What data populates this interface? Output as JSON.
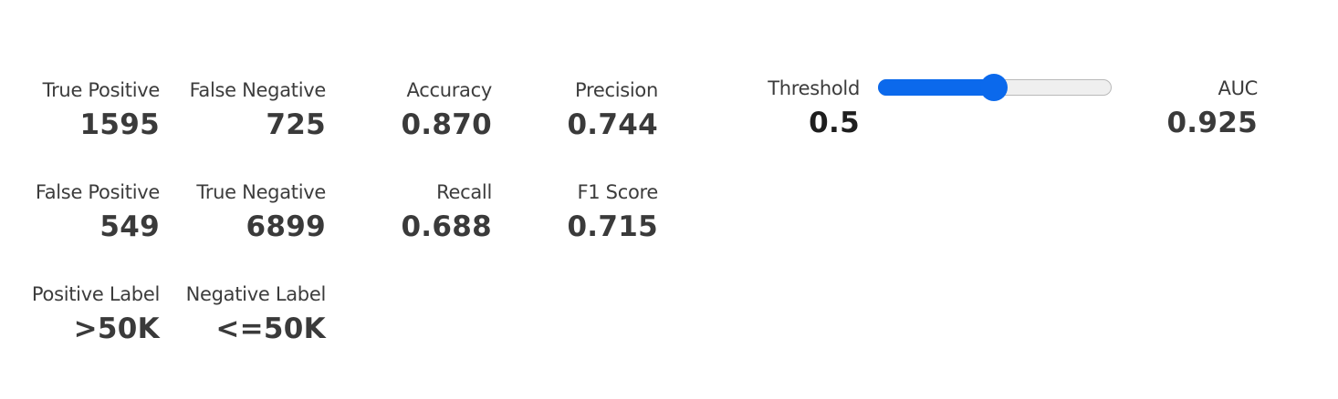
{
  "confusion": {
    "true_positive": {
      "label": "True Positive",
      "value": "1595"
    },
    "false_negative": {
      "label": "False Negative",
      "value": "725"
    },
    "false_positive": {
      "label": "False Positive",
      "value": "549"
    },
    "true_negative": {
      "label": "True Negative",
      "value": "6899"
    },
    "positive_label": {
      "label": "Positive Label",
      "value": ">50K"
    },
    "negative_label": {
      "label": "Negative Label",
      "value": "<=50K"
    }
  },
  "metrics": {
    "accuracy": {
      "label": "Accuracy",
      "value": "0.870"
    },
    "precision": {
      "label": "Precision",
      "value": "0.744"
    },
    "recall": {
      "label": "Recall",
      "value": "0.688"
    },
    "f1": {
      "label": "F1 Score",
      "value": "0.715"
    },
    "auc": {
      "label": "AUC",
      "value": "0.925"
    }
  },
  "threshold": {
    "label": "Threshold",
    "value": "0.5",
    "slider_fraction": 0.5
  },
  "colors": {
    "accent": "#0b69ec",
    "track": "#efefef"
  }
}
